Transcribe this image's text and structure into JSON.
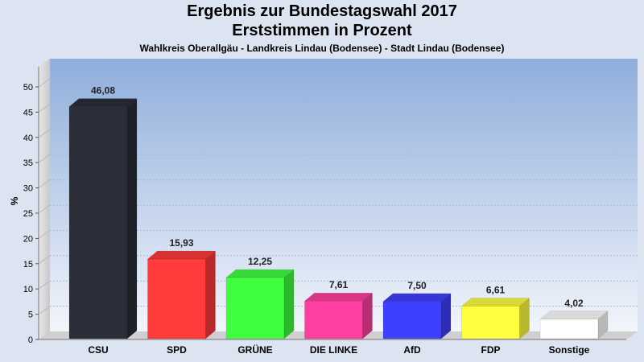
{
  "chart_data": {
    "type": "bar",
    "title": "Ergebnis zur Bundestagswahl 2017",
    "subtitle_line": "Erststimmen in Prozent",
    "subtitle": "Wahlkreis Oberallgäu - Landkreis Lindau (Bodensee) - Stadt Lindau (Bodensee)",
    "xlabel": "",
    "ylabel": "%",
    "ylim": [
      0,
      50
    ],
    "yticks": [
      0,
      5,
      10,
      15,
      20,
      25,
      30,
      35,
      40,
      45,
      50
    ],
    "grid": true,
    "categories": [
      "CSU",
      "SPD",
      "GRÜNE",
      "DIE LINKE",
      "AfD",
      "FDP",
      "Sonstige"
    ],
    "values": [
      46.08,
      15.93,
      12.25,
      7.61,
      7.5,
      6.61,
      4.02
    ],
    "value_labels": [
      "46,08",
      "15,93",
      "12,25",
      "7,61",
      "7,50",
      "6,61",
      "4,02"
    ],
    "colors": [
      "#2b2e38",
      "#ff3b3b",
      "#3fff3f",
      "#ff3fa0",
      "#3f3fff",
      "#ffff3f",
      "#ffffff"
    ]
  }
}
